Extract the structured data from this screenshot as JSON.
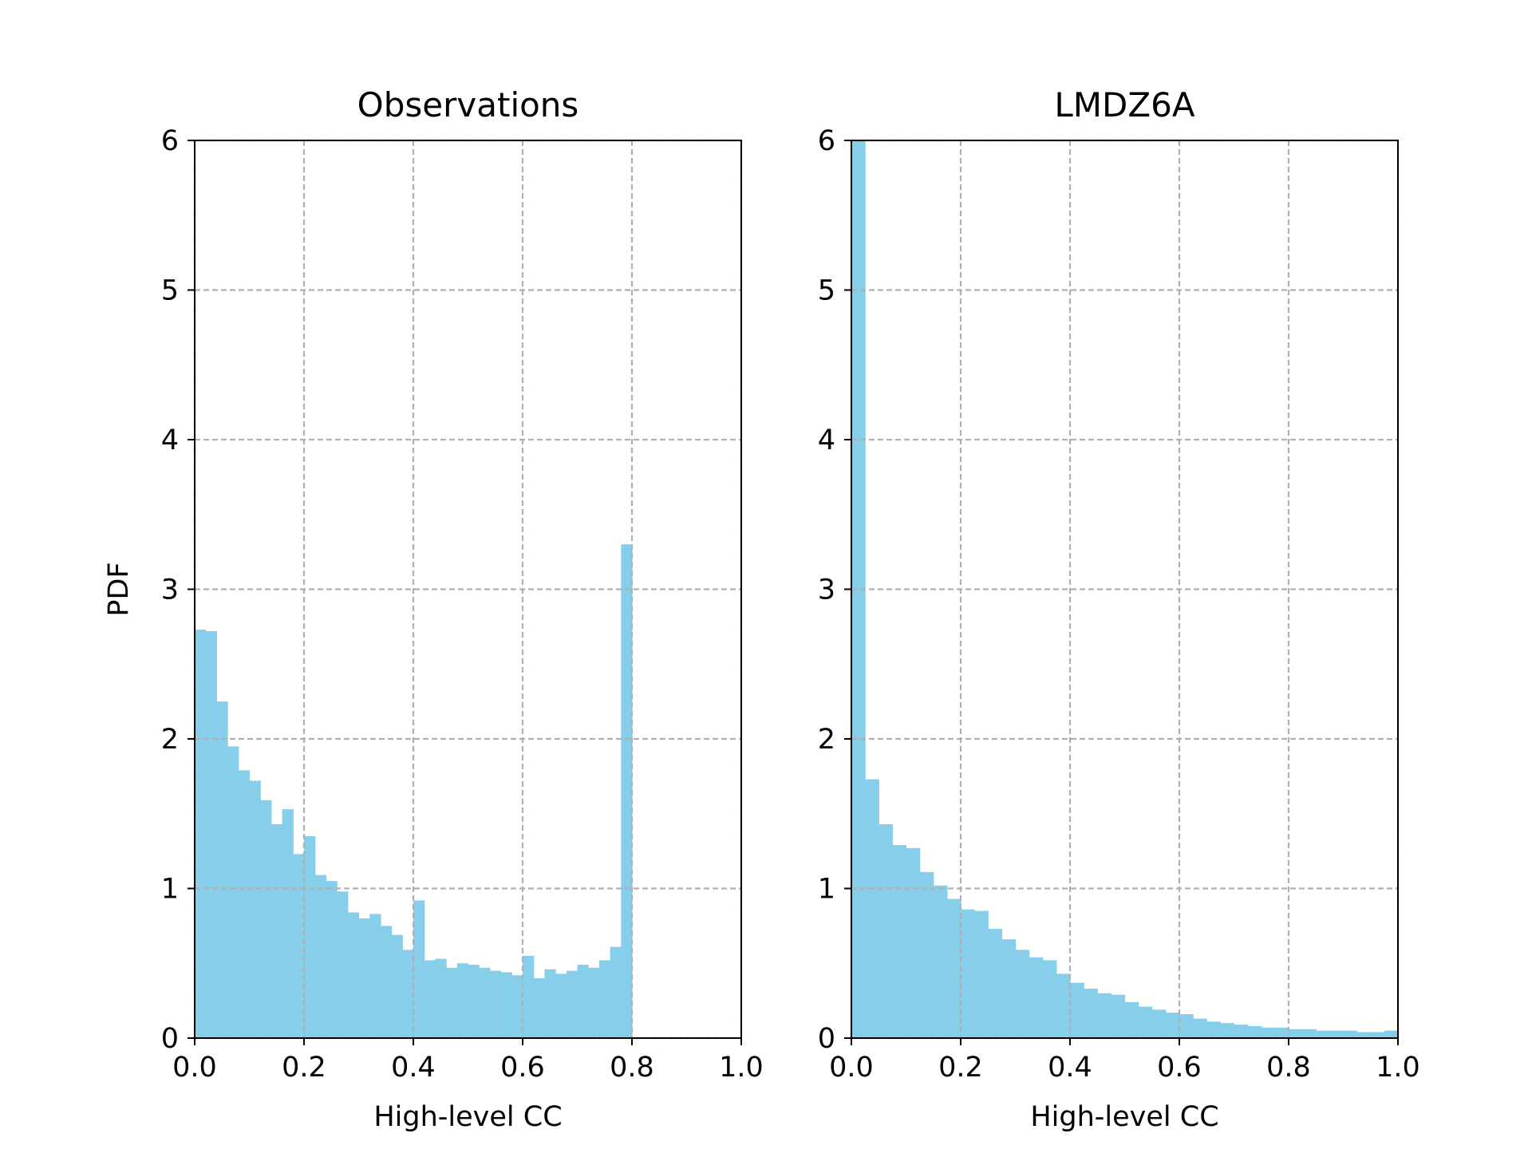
{
  "colors": {
    "bar": "#87ceeb",
    "grid": "#b0b0b0",
    "axis": "#000000"
  },
  "chart_data": [
    {
      "type": "bar",
      "title": "Observations",
      "xlabel": "High-level CC",
      "ylabel": "PDF",
      "xlim": [
        0,
        1
      ],
      "ylim": [
        0,
        6
      ],
      "grid": true,
      "x_ticks": [
        "0.0",
        "0.2",
        "0.4",
        "0.6",
        "0.8",
        "1.0"
      ],
      "y_ticks": [
        "0",
        "1",
        "2",
        "3",
        "4",
        "5",
        "6"
      ],
      "bin_width": 0.02,
      "values": [
        2.73,
        2.72,
        2.25,
        1.95,
        1.79,
        1.72,
        1.59,
        1.43,
        1.53,
        1.23,
        1.35,
        1.09,
        1.05,
        0.98,
        0.84,
        0.8,
        0.83,
        0.75,
        0.69,
        0.59,
        0.92,
        0.52,
        0.53,
        0.47,
        0.5,
        0.49,
        0.47,
        0.45,
        0.44,
        0.42,
        0.55,
        0.4,
        0.46,
        0.43,
        0.45,
        0.49,
        0.47,
        0.52,
        0.61,
        3.3
      ]
    },
    {
      "type": "bar",
      "title": "LMDZ6A",
      "xlabel": "High-level CC",
      "ylabel": "",
      "xlim": [
        0,
        1
      ],
      "ylim": [
        0,
        6
      ],
      "grid": true,
      "x_ticks": [
        "0.0",
        "0.2",
        "0.4",
        "0.6",
        "0.8",
        "1.0"
      ],
      "y_ticks": [
        "0",
        "1",
        "2",
        "3",
        "4",
        "5",
        "6"
      ],
      "bin_width": 0.025,
      "values": [
        6.0,
        1.73,
        1.43,
        1.29,
        1.27,
        1.11,
        1.02,
        0.93,
        0.86,
        0.85,
        0.73,
        0.66,
        0.59,
        0.54,
        0.52,
        0.43,
        0.37,
        0.33,
        0.3,
        0.29,
        0.24,
        0.21,
        0.19,
        0.17,
        0.16,
        0.13,
        0.11,
        0.1,
        0.09,
        0.08,
        0.07,
        0.07,
        0.06,
        0.06,
        0.05,
        0.05,
        0.05,
        0.04,
        0.04,
        0.05
      ]
    }
  ]
}
